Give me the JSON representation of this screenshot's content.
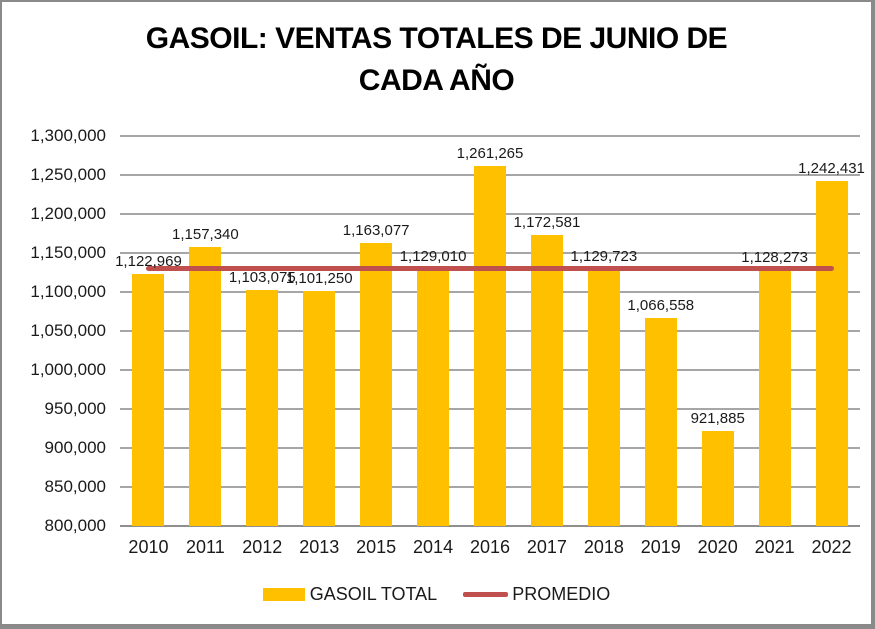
{
  "chart_data": {
    "type": "bar",
    "title": "GASOIL: VENTAS TOTALES DE JUNIO DE CADA AÑO",
    "title_lines": [
      "GASOIL: VENTAS TOTALES DE JUNIO DE",
      "CADA AÑO"
    ],
    "categories": [
      "2010",
      "2011",
      "2012",
      "2013",
      "2015",
      "2014",
      "2016",
      "2017",
      "2018",
      "2019",
      "2020",
      "2021",
      "2022"
    ],
    "series": [
      {
        "name": "GASOIL TOTAL",
        "type": "bar",
        "color": "#FFC000",
        "values": [
          1122969,
          1157340,
          1103075,
          1101250,
          1163077,
          1129010,
          1261265,
          1172581,
          1129723,
          1066558,
          921885,
          1128273,
          1242431
        ]
      },
      {
        "name": "PROMEDIO",
        "type": "line",
        "color": "#C0504D",
        "value": 1130727
      }
    ],
    "data_labels": [
      "1,122,969",
      "1,157,340",
      "1,103,075",
      "1,101,250",
      "1,163,077",
      "1,129,010",
      "1,261,265",
      "1,172,581",
      "1,129,723",
      "1,066,558",
      "921,885",
      "1,128,273",
      "1,242,431"
    ],
    "ylim": [
      800000,
      1300000
    ],
    "ytick_step": 50000,
    "yticks": [
      "800,000",
      "850,000",
      "900,000",
      "950,000",
      "1,000,000",
      "1,050,000",
      "1,100,000",
      "1,150,000",
      "1,200,000",
      "1,250,000",
      "1,300,000"
    ],
    "grid": true,
    "legend_position": "bottom",
    "colors": {
      "gridline": "#A6A6A6",
      "axis_line": "#8F8F8F",
      "label_text": "#1a1a1a",
      "title_text": "#000000",
      "frame_border": "#8a8a8a",
      "background": "#FFFFFF"
    }
  }
}
